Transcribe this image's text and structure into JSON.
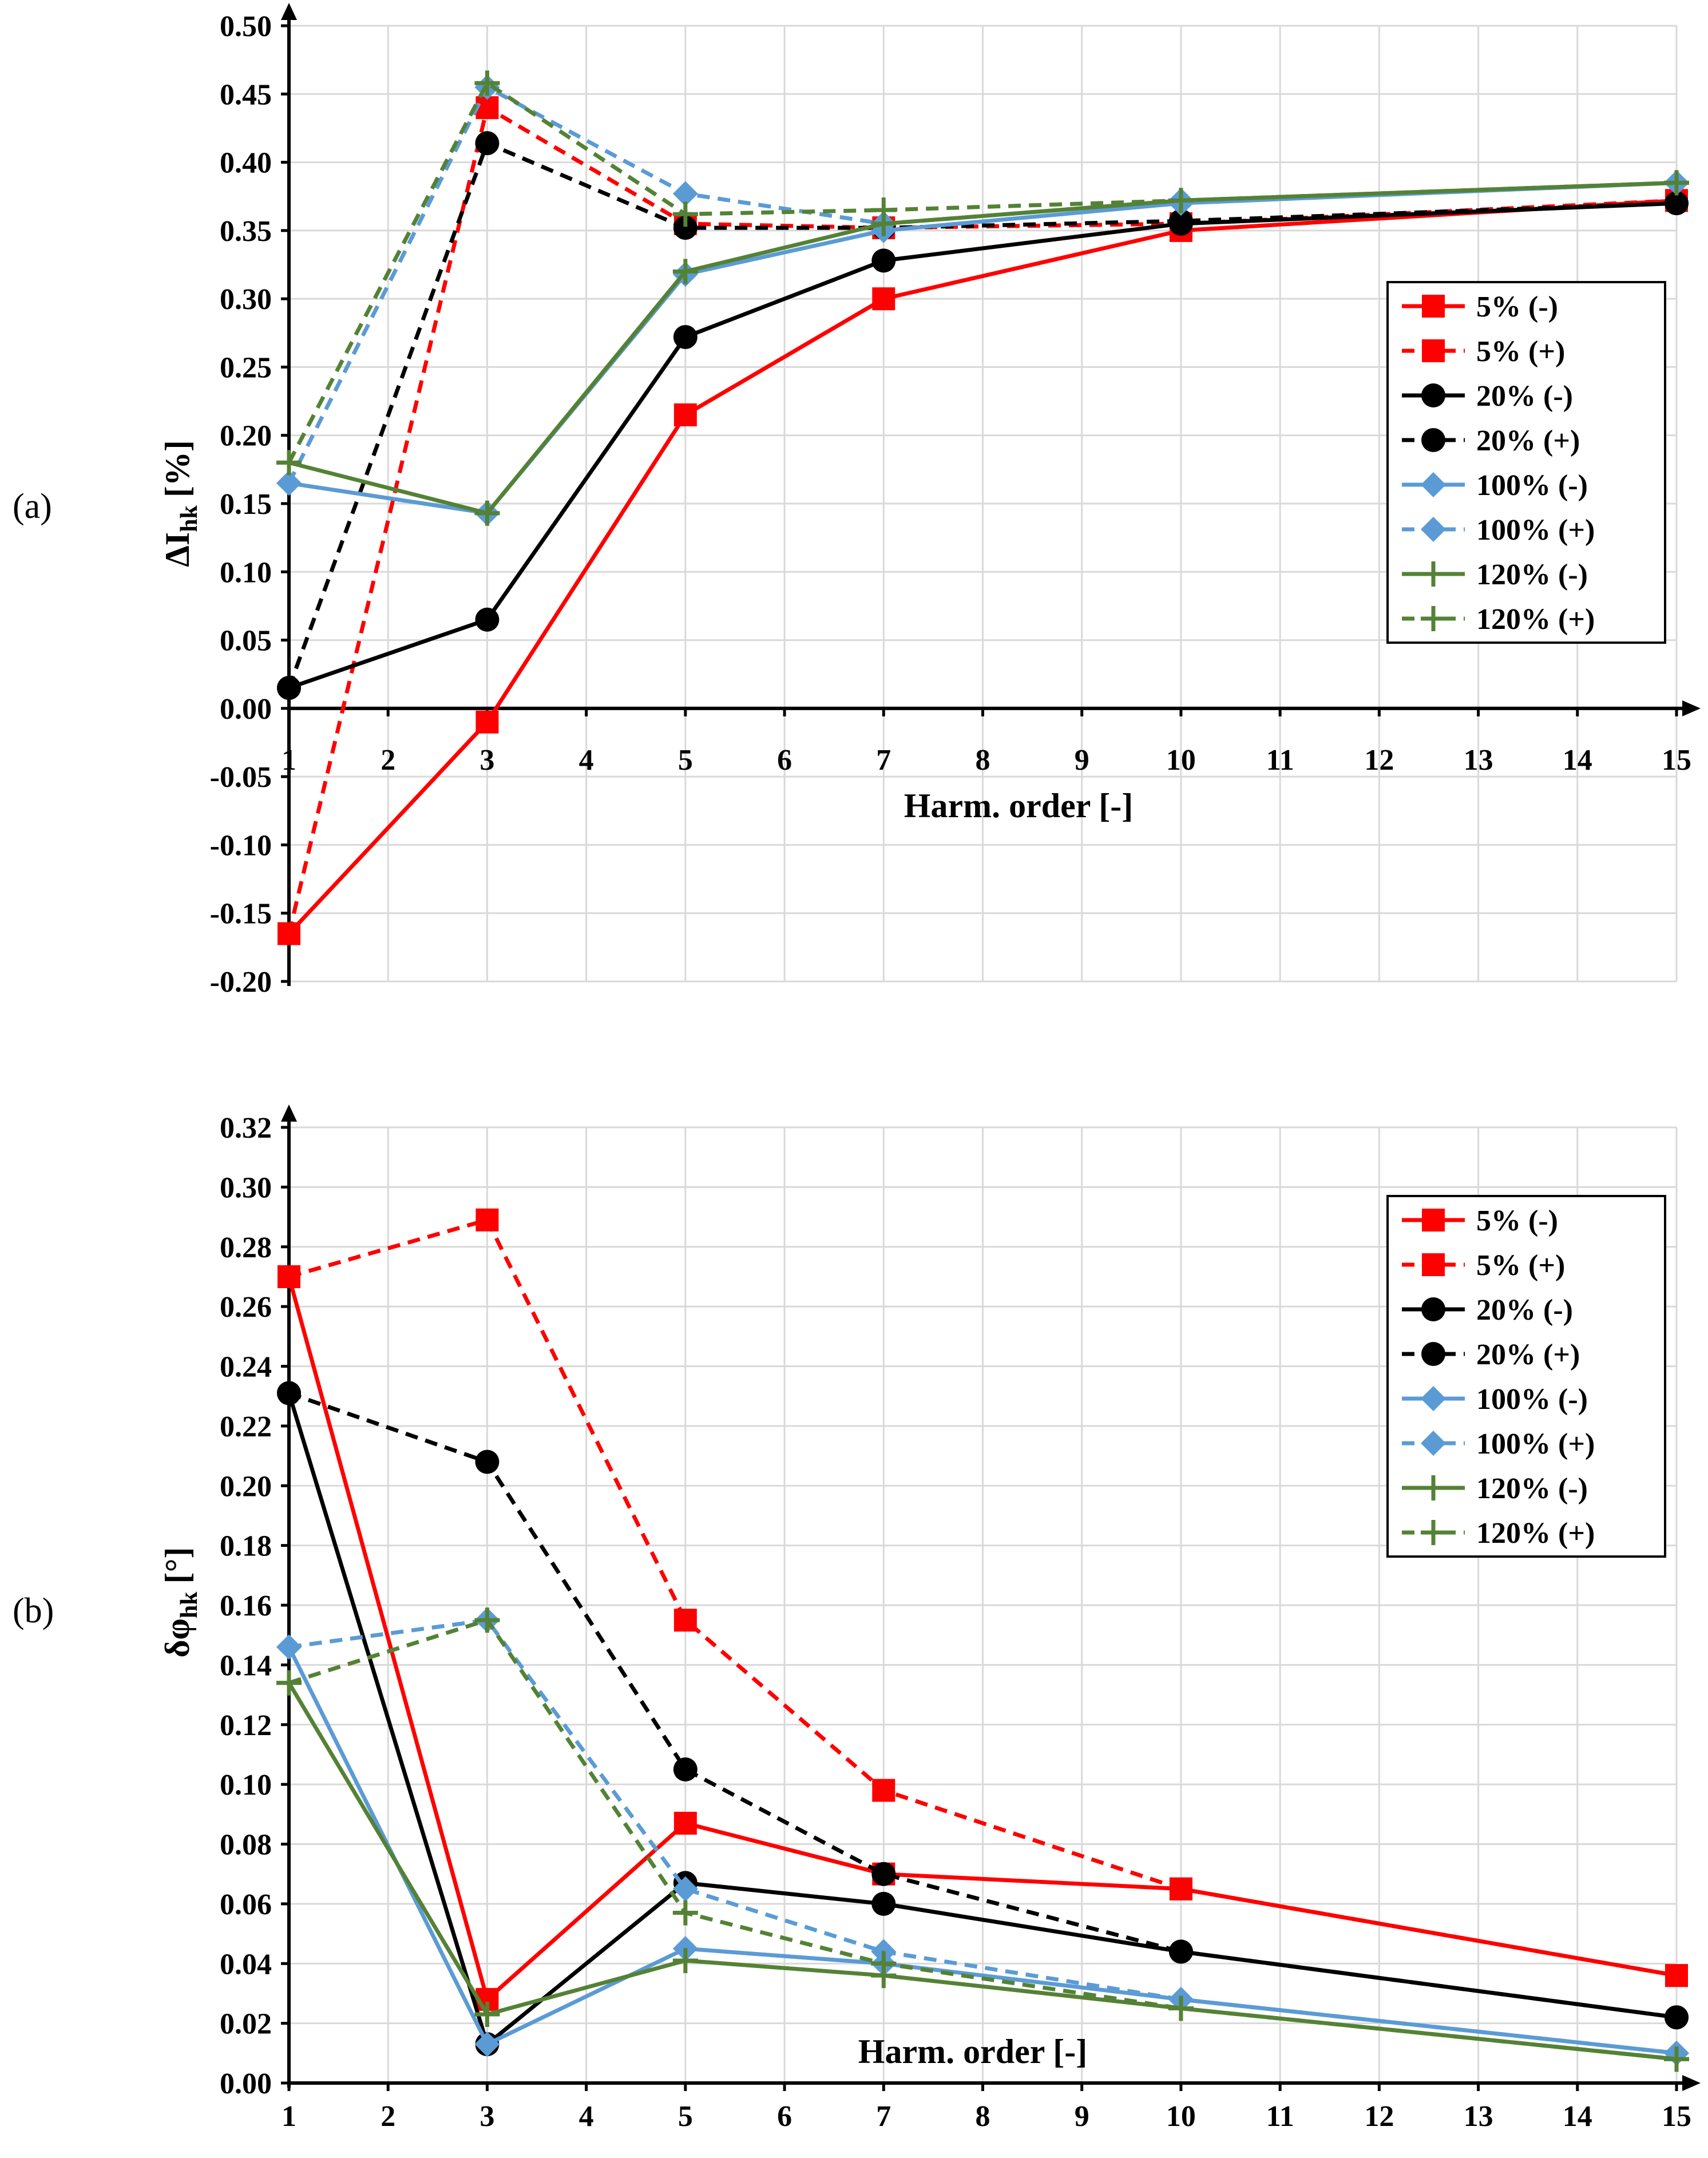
{
  "series_styles": [
    {
      "key": "5m",
      "color": "#ff0000",
      "dash": false,
      "marker": "square"
    },
    {
      "key": "5p",
      "color": "#ff0000",
      "dash": true,
      "marker": "square"
    },
    {
      "key": "20m",
      "color": "#000000",
      "dash": false,
      "marker": "circle"
    },
    {
      "key": "20p",
      "color": "#000000",
      "dash": true,
      "marker": "circle"
    },
    {
      "key": "100m",
      "color": "#5b9bd5",
      "dash": false,
      "marker": "diamond"
    },
    {
      "key": "100p",
      "color": "#5b9bd5",
      "dash": true,
      "marker": "diamond"
    },
    {
      "key": "120m",
      "color": "#548235",
      "dash": false,
      "marker": "plus"
    },
    {
      "key": "120p",
      "color": "#548235",
      "dash": true,
      "marker": "plus"
    }
  ],
  "chart_data": [
    {
      "panel_label": "(a)",
      "type": "line",
      "ylabel_main": "ΔI",
      "ylabel_sub": "hk",
      "ylabel_unit": "[%]",
      "xlabel": "Harm. order [-]",
      "ylim": [
        -0.2,
        0.5
      ],
      "yticks": [
        "0.50",
        "0.45",
        "0.40",
        "0.35",
        "0.30",
        "0.25",
        "0.20",
        "0.15",
        "0.10",
        "0.05",
        "0.00",
        "-0.05",
        "-0.10",
        "-0.15",
        "-0.20"
      ],
      "xticks": [
        "1",
        "2",
        "3",
        "4",
        "5",
        "6",
        "7",
        "8",
        "9",
        "10",
        "11",
        "12",
        "13",
        "14",
        "15"
      ],
      "x": [
        1,
        3,
        5,
        7,
        10,
        15
      ],
      "series": [
        {
          "name": "5% (-)",
          "values": [
            -0.165,
            -0.01,
            0.215,
            0.3,
            0.35,
            0.372
          ]
        },
        {
          "name": "5% (+)",
          "values": [
            -0.165,
            0.44,
            0.355,
            0.352,
            0.355,
            0.372
          ]
        },
        {
          "name": "20% (-)",
          "values": [
            0.015,
            0.065,
            0.272,
            0.328,
            0.355,
            0.37
          ]
        },
        {
          "name": "20% (+)",
          "values": [
            0.015,
            0.414,
            0.352,
            0.352,
            0.357,
            0.37
          ]
        },
        {
          "name": "100% (-)",
          "values": [
            0.165,
            0.143,
            0.318,
            0.35,
            0.37,
            0.385
          ]
        },
        {
          "name": "100% (+)",
          "values": [
            0.165,
            0.455,
            0.377,
            0.355,
            0.372,
            0.385
          ]
        },
        {
          "name": "120% (-)",
          "values": [
            0.18,
            0.143,
            0.32,
            0.355,
            0.372,
            0.385
          ]
        },
        {
          "name": "120% (+)",
          "values": [
            0.18,
            0.458,
            0.362,
            0.365,
            0.372,
            0.385
          ]
        }
      ]
    },
    {
      "panel_label": "(b)",
      "type": "line",
      "ylabel_main": "δφ",
      "ylabel_sub": "hk",
      "ylabel_unit": "[°]",
      "xlabel": "Harm. order [-]",
      "ylim": [
        0.0,
        0.32
      ],
      "yticks": [
        "0.32",
        "0.30",
        "0.28",
        "0.26",
        "0.24",
        "0.22",
        "0.20",
        "0.18",
        "0.16",
        "0.14",
        "0.12",
        "0.10",
        "0.08",
        "0.06",
        "0.04",
        "0.02",
        "0.00"
      ],
      "xticks": [
        "1",
        "2",
        "3",
        "4",
        "5",
        "6",
        "7",
        "8",
        "9",
        "10",
        "11",
        "12",
        "13",
        "14",
        "15"
      ],
      "x": [
        1,
        3,
        5,
        7,
        10,
        15
      ],
      "series": [
        {
          "name": "5% (-)",
          "values": [
            0.27,
            0.028,
            0.087,
            0.07,
            0.065,
            0.036
          ]
        },
        {
          "name": "5% (+)",
          "values": [
            0.27,
            0.289,
            0.155,
            0.098,
            0.065,
            0.036
          ]
        },
        {
          "name": "20% (-)",
          "values": [
            0.231,
            0.013,
            0.067,
            0.06,
            0.044,
            0.022
          ]
        },
        {
          "name": "20% (+)",
          "values": [
            0.231,
            0.208,
            0.105,
            0.07,
            0.044,
            0.022
          ]
        },
        {
          "name": "100% (-)",
          "values": [
            0.146,
            0.013,
            0.045,
            0.04,
            0.028,
            0.01
          ]
        },
        {
          "name": "100% (+)",
          "values": [
            0.146,
            0.155,
            0.065,
            0.044,
            0.028,
            0.01
          ]
        },
        {
          "name": "120% (-)",
          "values": [
            0.134,
            0.023,
            0.041,
            0.036,
            0.025,
            0.008
          ]
        },
        {
          "name": "120% (+)",
          "values": [
            0.134,
            0.155,
            0.057,
            0.04,
            0.025,
            0.008
          ]
        }
      ]
    }
  ]
}
